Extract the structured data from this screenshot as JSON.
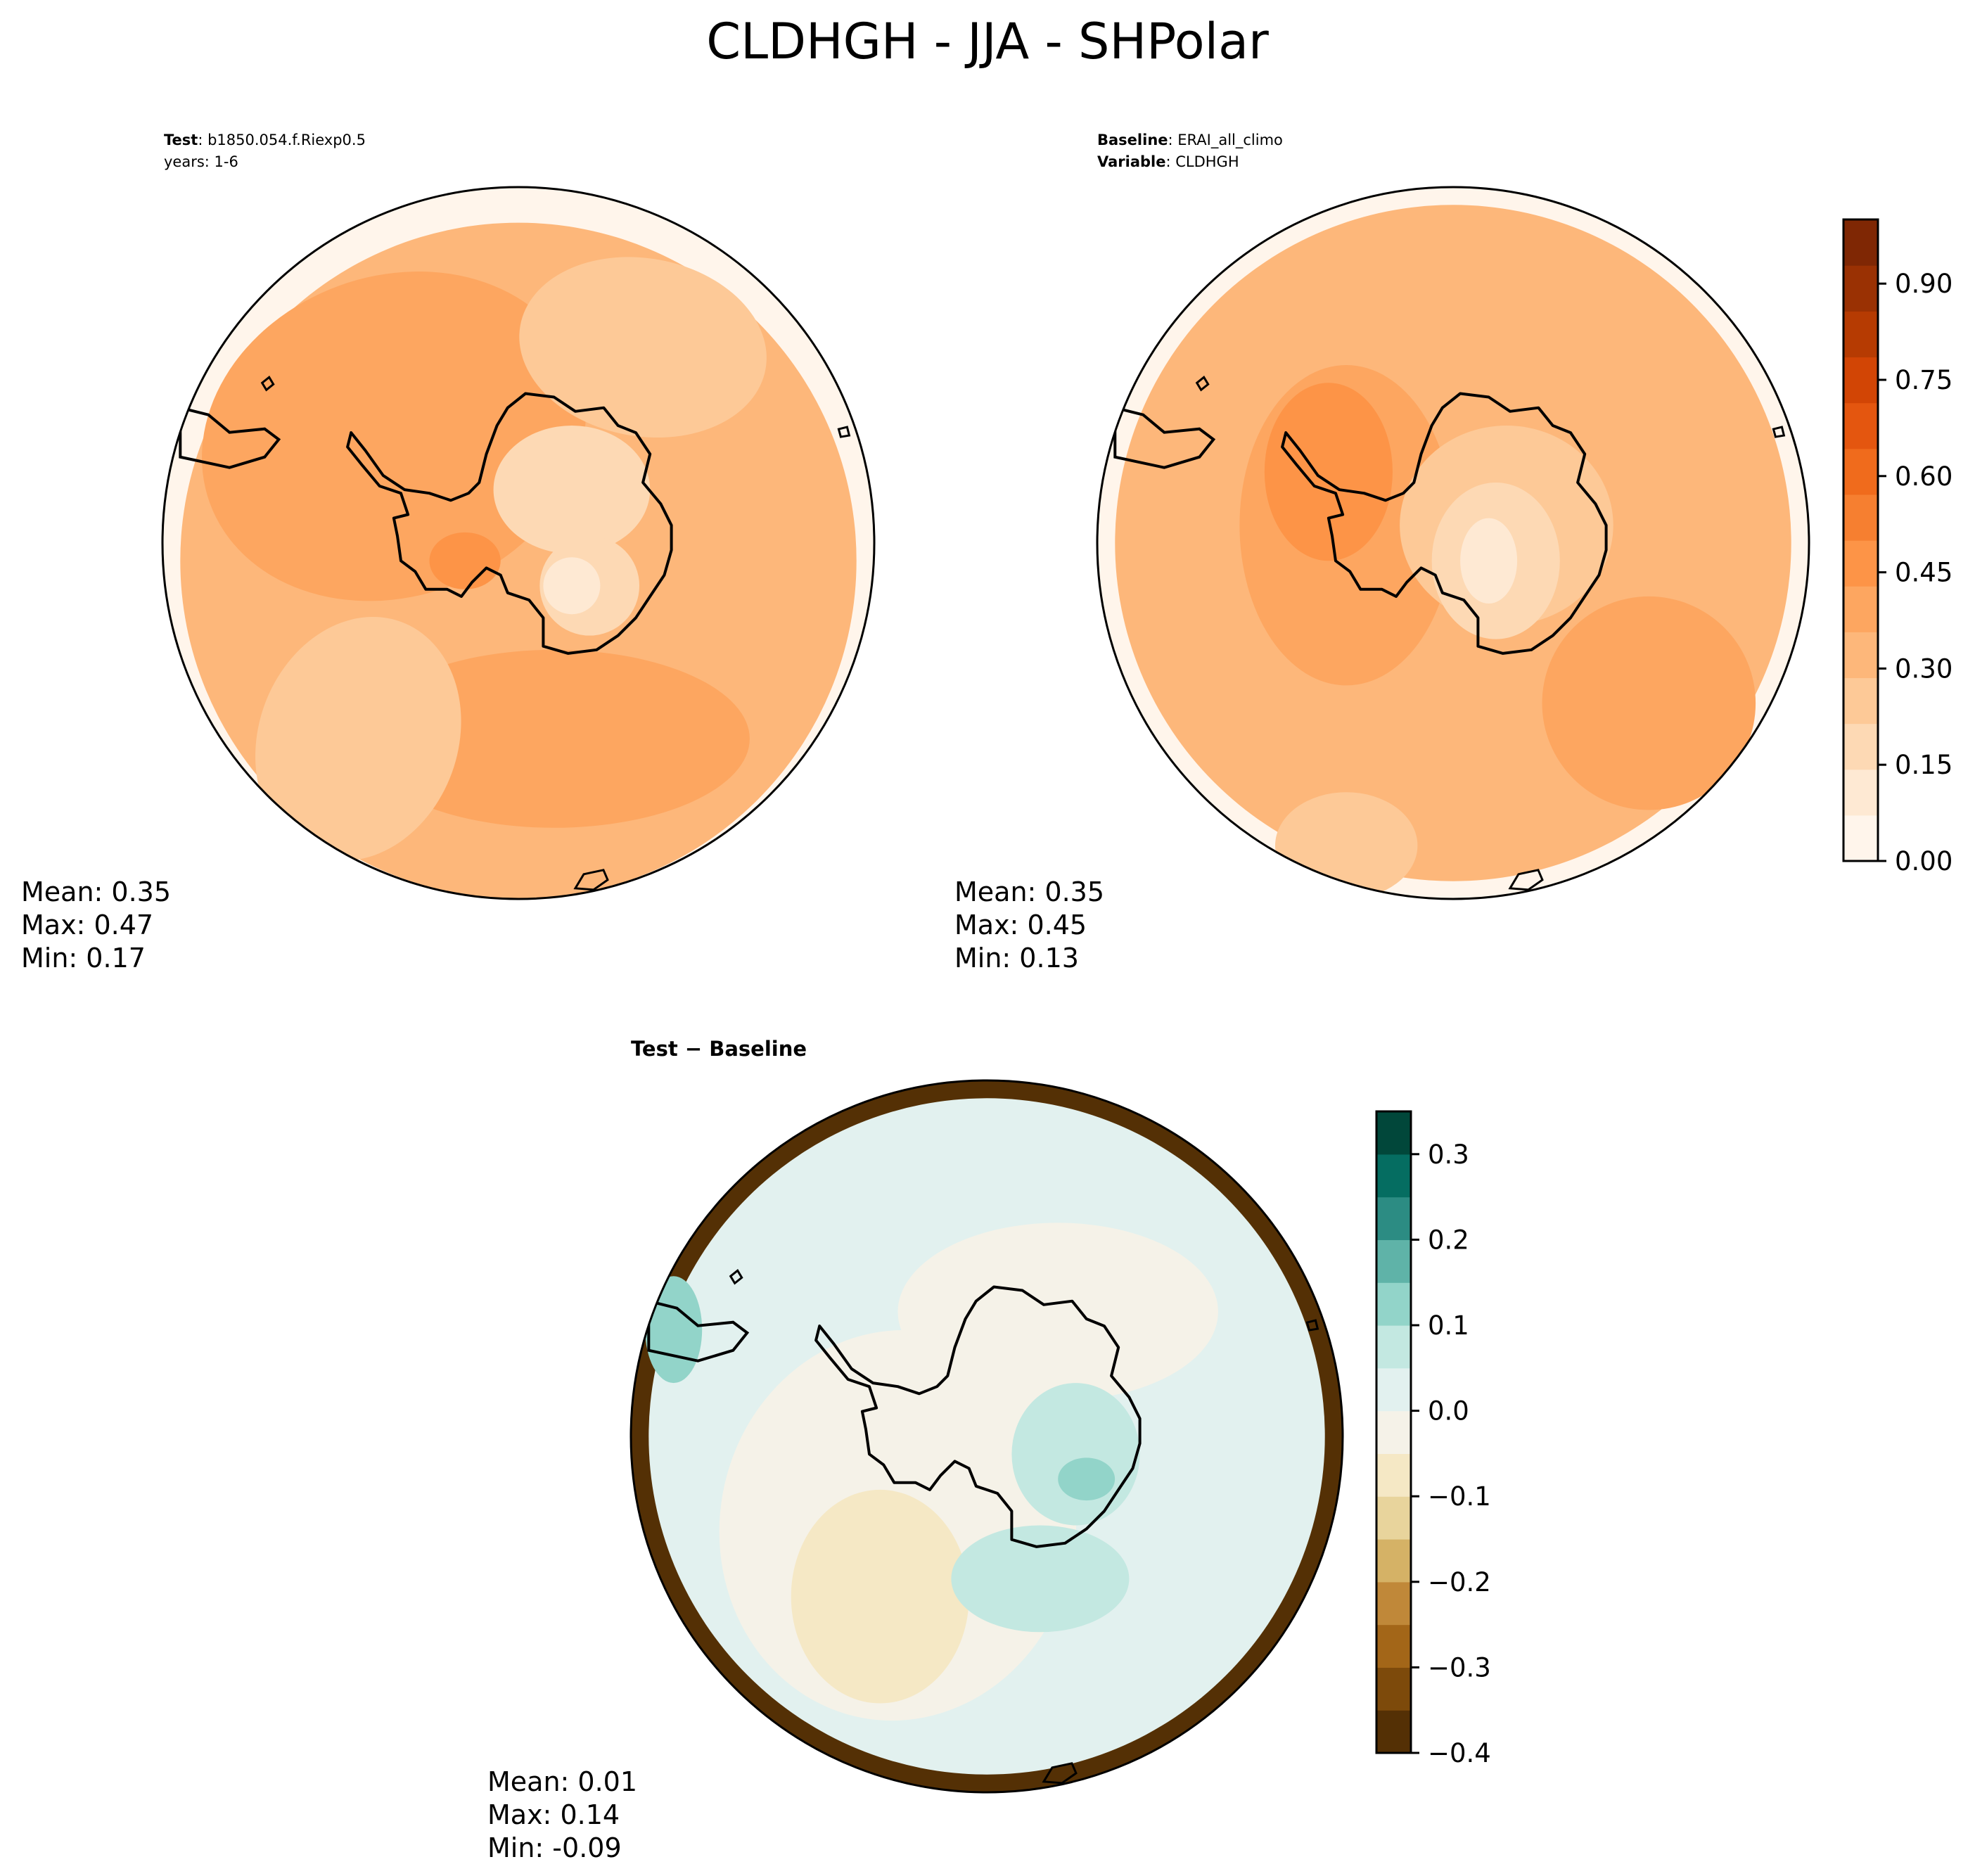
{
  "figure": {
    "title": "CLDHGH - JJA - SHPolar"
  },
  "panels": {
    "test": {
      "label_key": "Test",
      "label_value": ": b1850.054.f.Riexp0.5",
      "years_line": "years: 1-6",
      "mean_line": "Mean:  0.35",
      "max_line": "Max:  0.47",
      "min_line": "Min:  0.17"
    },
    "baseline": {
      "label_key": "Baseline",
      "label_value": ": ERAI_all_climo",
      "variable_key": "Variable",
      "variable_value": ": CLDHGH",
      "mean_line": "Mean:  0.35",
      "max_line": "Max:  0.45",
      "min_line": "Min:  0.13"
    },
    "diff": {
      "title": "Test − Baseline",
      "mean_line": "Mean:  0.01",
      "max_line": "Max:  0.14",
      "min_line": "Min: -0.09"
    }
  },
  "colors": {
    "oranges": [
      "#fff5eb",
      "#fee9d3",
      "#fdd9b4",
      "#fdc997",
      "#fdb77a",
      "#fda660",
      "#fd9447",
      "#f67f30",
      "#f06b1c",
      "#e4560f",
      "#d24505",
      "#b63b02",
      "#9a3103",
      "#7f2704"
    ],
    "brbg": [
      "#543005",
      "#7d4a0b",
      "#a36618",
      "#c08839",
      "#d5b266",
      "#e8d49c",
      "#f5e8c5",
      "#f5f2e8",
      "#e2f1ef",
      "#c3e8e1",
      "#92d4c9",
      "#5fb3a8",
      "#2c8c83",
      "#056d61",
      "#01473a"
    ]
  },
  "chart_data": [
    {
      "type": "heatmap",
      "panel": "test",
      "projection": "south-polar-stereographic",
      "statistics": {
        "mean": 0.35,
        "max": 0.47,
        "min": 0.17
      },
      "colorbar": "oranges"
    },
    {
      "type": "heatmap",
      "panel": "baseline",
      "projection": "south-polar-stereographic",
      "statistics": {
        "mean": 0.35,
        "max": 0.45,
        "min": 0.13
      },
      "colorbar": {
        "range": [
          0.0,
          1.0
        ],
        "ticks": [
          0.0,
          0.15,
          0.3,
          0.45,
          0.6,
          0.75,
          0.9
        ],
        "tick_labels": [
          "0.00",
          "0.15",
          "0.30",
          "0.45",
          "0.60",
          "0.75",
          "0.90"
        ]
      }
    },
    {
      "type": "heatmap",
      "panel": "diff",
      "projection": "south-polar-stereographic",
      "statistics": {
        "mean": 0.01,
        "max": 0.14,
        "min": -0.09
      },
      "colorbar": {
        "range": [
          -0.4,
          0.35
        ],
        "ticks": [
          -0.4,
          -0.3,
          -0.2,
          -0.1,
          0.0,
          0.1,
          0.2,
          0.3
        ],
        "tick_labels": [
          "−0.4",
          "−0.3",
          "−0.2",
          "−0.1",
          "0.0",
          "0.1",
          "0.2",
          "0.3"
        ]
      }
    }
  ]
}
